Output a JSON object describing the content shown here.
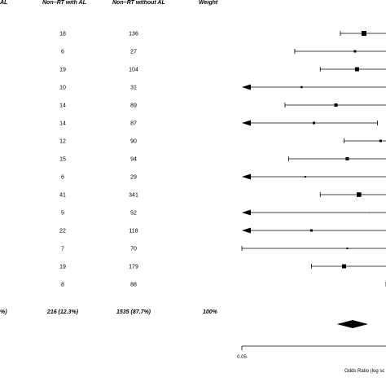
{
  "columns": {
    "rt_al_fragment": "AL",
    "nonrt_with_al": "Non−RT with AL",
    "nonrt_without_al": "Non−RT without AL",
    "weight": "Weight"
  },
  "totals": {
    "left_fragment": "%)",
    "nonrt_with_al": "216 (12.3%)",
    "nonrt_without_al": "1535 (87.7%)",
    "weight": "100%"
  },
  "chart_data": {
    "type": "forest",
    "xscale": "log",
    "xlabel": "Odds Ratio (log sc",
    "xticks": [
      "0.05"
    ],
    "studies": [
      {
        "with_al": "18",
        "without_al": "136",
        "or": 8.0,
        "lo": 3.0,
        "hi": 20.0,
        "left_arrow": false,
        "size": 3
      },
      {
        "with_al": "6",
        "without_al": "27",
        "or": 5.5,
        "lo": 0.45,
        "hi": 20.0,
        "left_arrow": false,
        "size": 1.5
      },
      {
        "with_al": "19",
        "without_al": "104",
        "or": 6.0,
        "lo": 1.3,
        "hi": 20.0,
        "left_arrow": false,
        "size": 2.5
      },
      {
        "with_al": "10",
        "without_al": "31",
        "or": 0.6,
        "lo": 0.05,
        "hi": 20.0,
        "left_arrow": true,
        "size": 1.2
      },
      {
        "with_al": "14",
        "without_al": "89",
        "or": 2.5,
        "lo": 0.3,
        "hi": 20.0,
        "left_arrow": false,
        "size": 2
      },
      {
        "with_al": "14",
        "without_al": "87",
        "or": 1.0,
        "lo": 0.05,
        "hi": 14.0,
        "left_arrow": true,
        "size": 1.5
      },
      {
        "with_al": "12",
        "without_al": "90",
        "or": 16.0,
        "lo": 3.5,
        "hi": 20.0,
        "left_arrow": false,
        "size": 1.5
      },
      {
        "with_al": "15",
        "without_al": "94",
        "or": 4.0,
        "lo": 0.35,
        "hi": 20.0,
        "left_arrow": false,
        "size": 2
      },
      {
        "with_al": "6",
        "without_al": "29",
        "or": 0.7,
        "lo": 0.05,
        "hi": 20.0,
        "left_arrow": true,
        "size": 1
      },
      {
        "with_al": "41",
        "without_al": "341",
        "or": 6.5,
        "lo": 1.3,
        "hi": 20.0,
        "left_arrow": false,
        "size": 2.8
      },
      {
        "with_al": "5",
        "without_al": "52",
        "or": 10.0,
        "lo": 0.05,
        "hi": 20.0,
        "left_arrow": true,
        "size": 0.5
      },
      {
        "with_al": "22",
        "without_al": "118",
        "or": 0.9,
        "lo": 0.05,
        "hi": 20.0,
        "left_arrow": true,
        "size": 1.5
      },
      {
        "with_al": "7",
        "without_al": "70",
        "or": 4.0,
        "lo": 0.05,
        "hi": 20.0,
        "left_arrow": false,
        "size": 1
      },
      {
        "with_al": "19",
        "without_al": "179",
        "or": 3.5,
        "lo": 0.9,
        "hi": 20.0,
        "left_arrow": false,
        "size": 2.5
      },
      {
        "with_al": "8",
        "without_al": "88",
        "or": 22.0,
        "lo": 20.0,
        "hi": 25.0,
        "left_arrow": false,
        "size": 1.5
      }
    ],
    "pooled": {
      "or": 5.0,
      "lo": 2.6,
      "hi": 9.5
    }
  }
}
